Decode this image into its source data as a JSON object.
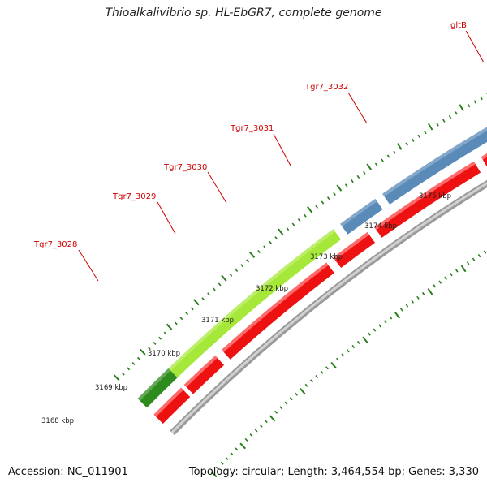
{
  "title": "Thioalkalivibrio sp. HL-EbGR7, complete genome",
  "accession": "Accession: NC_011901",
  "summary": "Topology: circular; Length: 3,464,554 bp; Genes: 3,330",
  "colors": {
    "label": "#cc0000",
    "cds_red": "#ee1111",
    "cds_red_top": "#ff6b6b",
    "blue": "#5a8ab8",
    "lime": "#a6e83a",
    "dark_green": "#2e8b1e",
    "cyan": "#19bdf5",
    "grey_block": "#6b6b6b",
    "backbone": "#9a9a9a",
    "tick": "#2a7d1c"
  },
  "kbp_labels": [
    "3168 kbp",
    "3169 kbp",
    "3170 kbp",
    "3171 kbp",
    "3172 kbp",
    "3173 kbp",
    "3174 kbp",
    "3175 kbp"
  ],
  "genes": [
    {
      "label": "Tgr7_3028",
      "color_key": "lime"
    },
    {
      "label": "Tgr7_3029",
      "color_key": "blue"
    },
    {
      "label": "Tgr7_3030",
      "color_key": "blue"
    },
    {
      "label": "Tgr7_3031",
      "color_key": "cyan"
    },
    {
      "label": "Tgr7_3032",
      "color_key": "grey_block"
    },
    {
      "label": "gltB",
      "color_key": "blue"
    }
  ]
}
